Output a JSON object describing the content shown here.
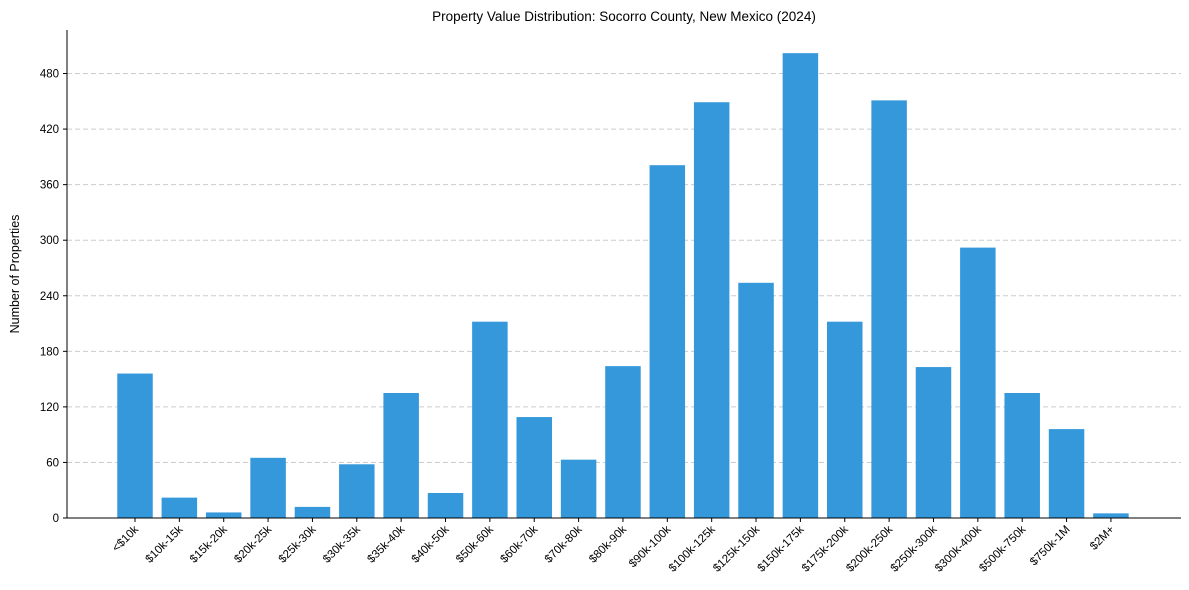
{
  "chart_data": {
    "type": "bar",
    "title": "Property Value Distribution: Socorro County, New Mexico (2024)",
    "xlabel": "",
    "ylabel": "Number of Properties",
    "categories": [
      "<$10k",
      "$10k-15k",
      "$15k-20k",
      "$20k-25k",
      "$25k-30k",
      "$30k-35k",
      "$35k-40k",
      "$40k-50k",
      "$50k-60k",
      "$60k-70k",
      "$70k-80k",
      "$80k-90k",
      "$90k-100k",
      "$100k-125k",
      "$125k-150k",
      "$150k-175k",
      "$175k-200k",
      "$200k-250k",
      "$250k-300k",
      "$300k-400k",
      "$500k-750k",
      "$750k-1M",
      "$2M+"
    ],
    "values": [
      156,
      22,
      6,
      65,
      12,
      58,
      135,
      27,
      212,
      109,
      63,
      164,
      381,
      449,
      254,
      502,
      212,
      451,
      163,
      292,
      135,
      96,
      5
    ],
    "yticks": [
      0,
      60,
      120,
      180,
      240,
      300,
      360,
      420,
      480
    ],
    "ylim": [
      0,
      527
    ],
    "grid": "y-dashed",
    "bar_color": "#3498db"
  }
}
